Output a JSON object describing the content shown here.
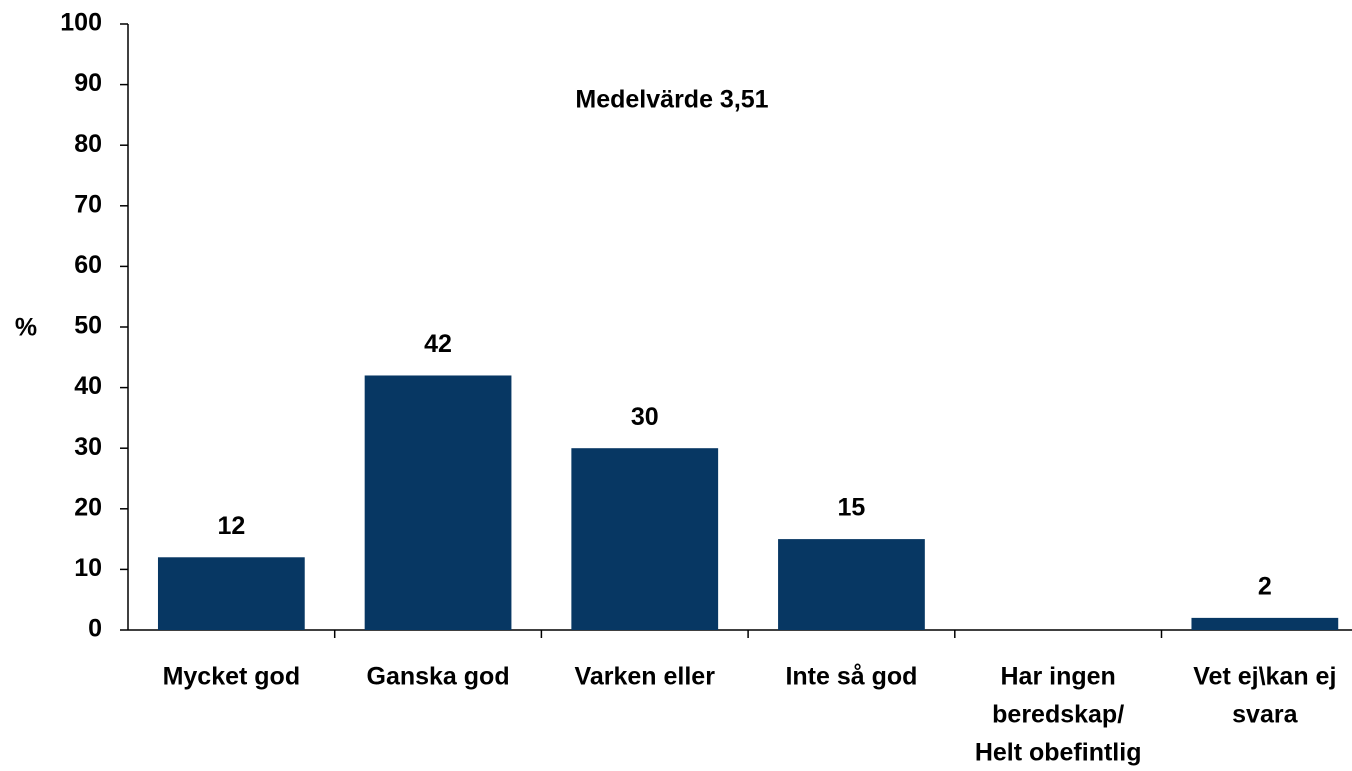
{
  "chart_data": {
    "type": "bar",
    "annotation": "Medelvärde 3,51",
    "y_label": "%",
    "categories": [
      [
        "Mycket god"
      ],
      [
        "Ganska god"
      ],
      [
        "Varken eller"
      ],
      [
        "Inte så god"
      ],
      [
        "Har ingen",
        "beredskap/",
        "Helt obefintlig"
      ],
      [
        "Vet ej\\kan ej",
        "svara"
      ]
    ],
    "values": [
      12,
      42,
      30,
      15,
      null,
      2
    ],
    "color": "#073763",
    "ylim": [
      0,
      100
    ],
    "yticks": [
      0,
      10,
      20,
      30,
      40,
      50,
      60,
      70,
      80,
      90,
      100
    ],
    "grid": false
  }
}
